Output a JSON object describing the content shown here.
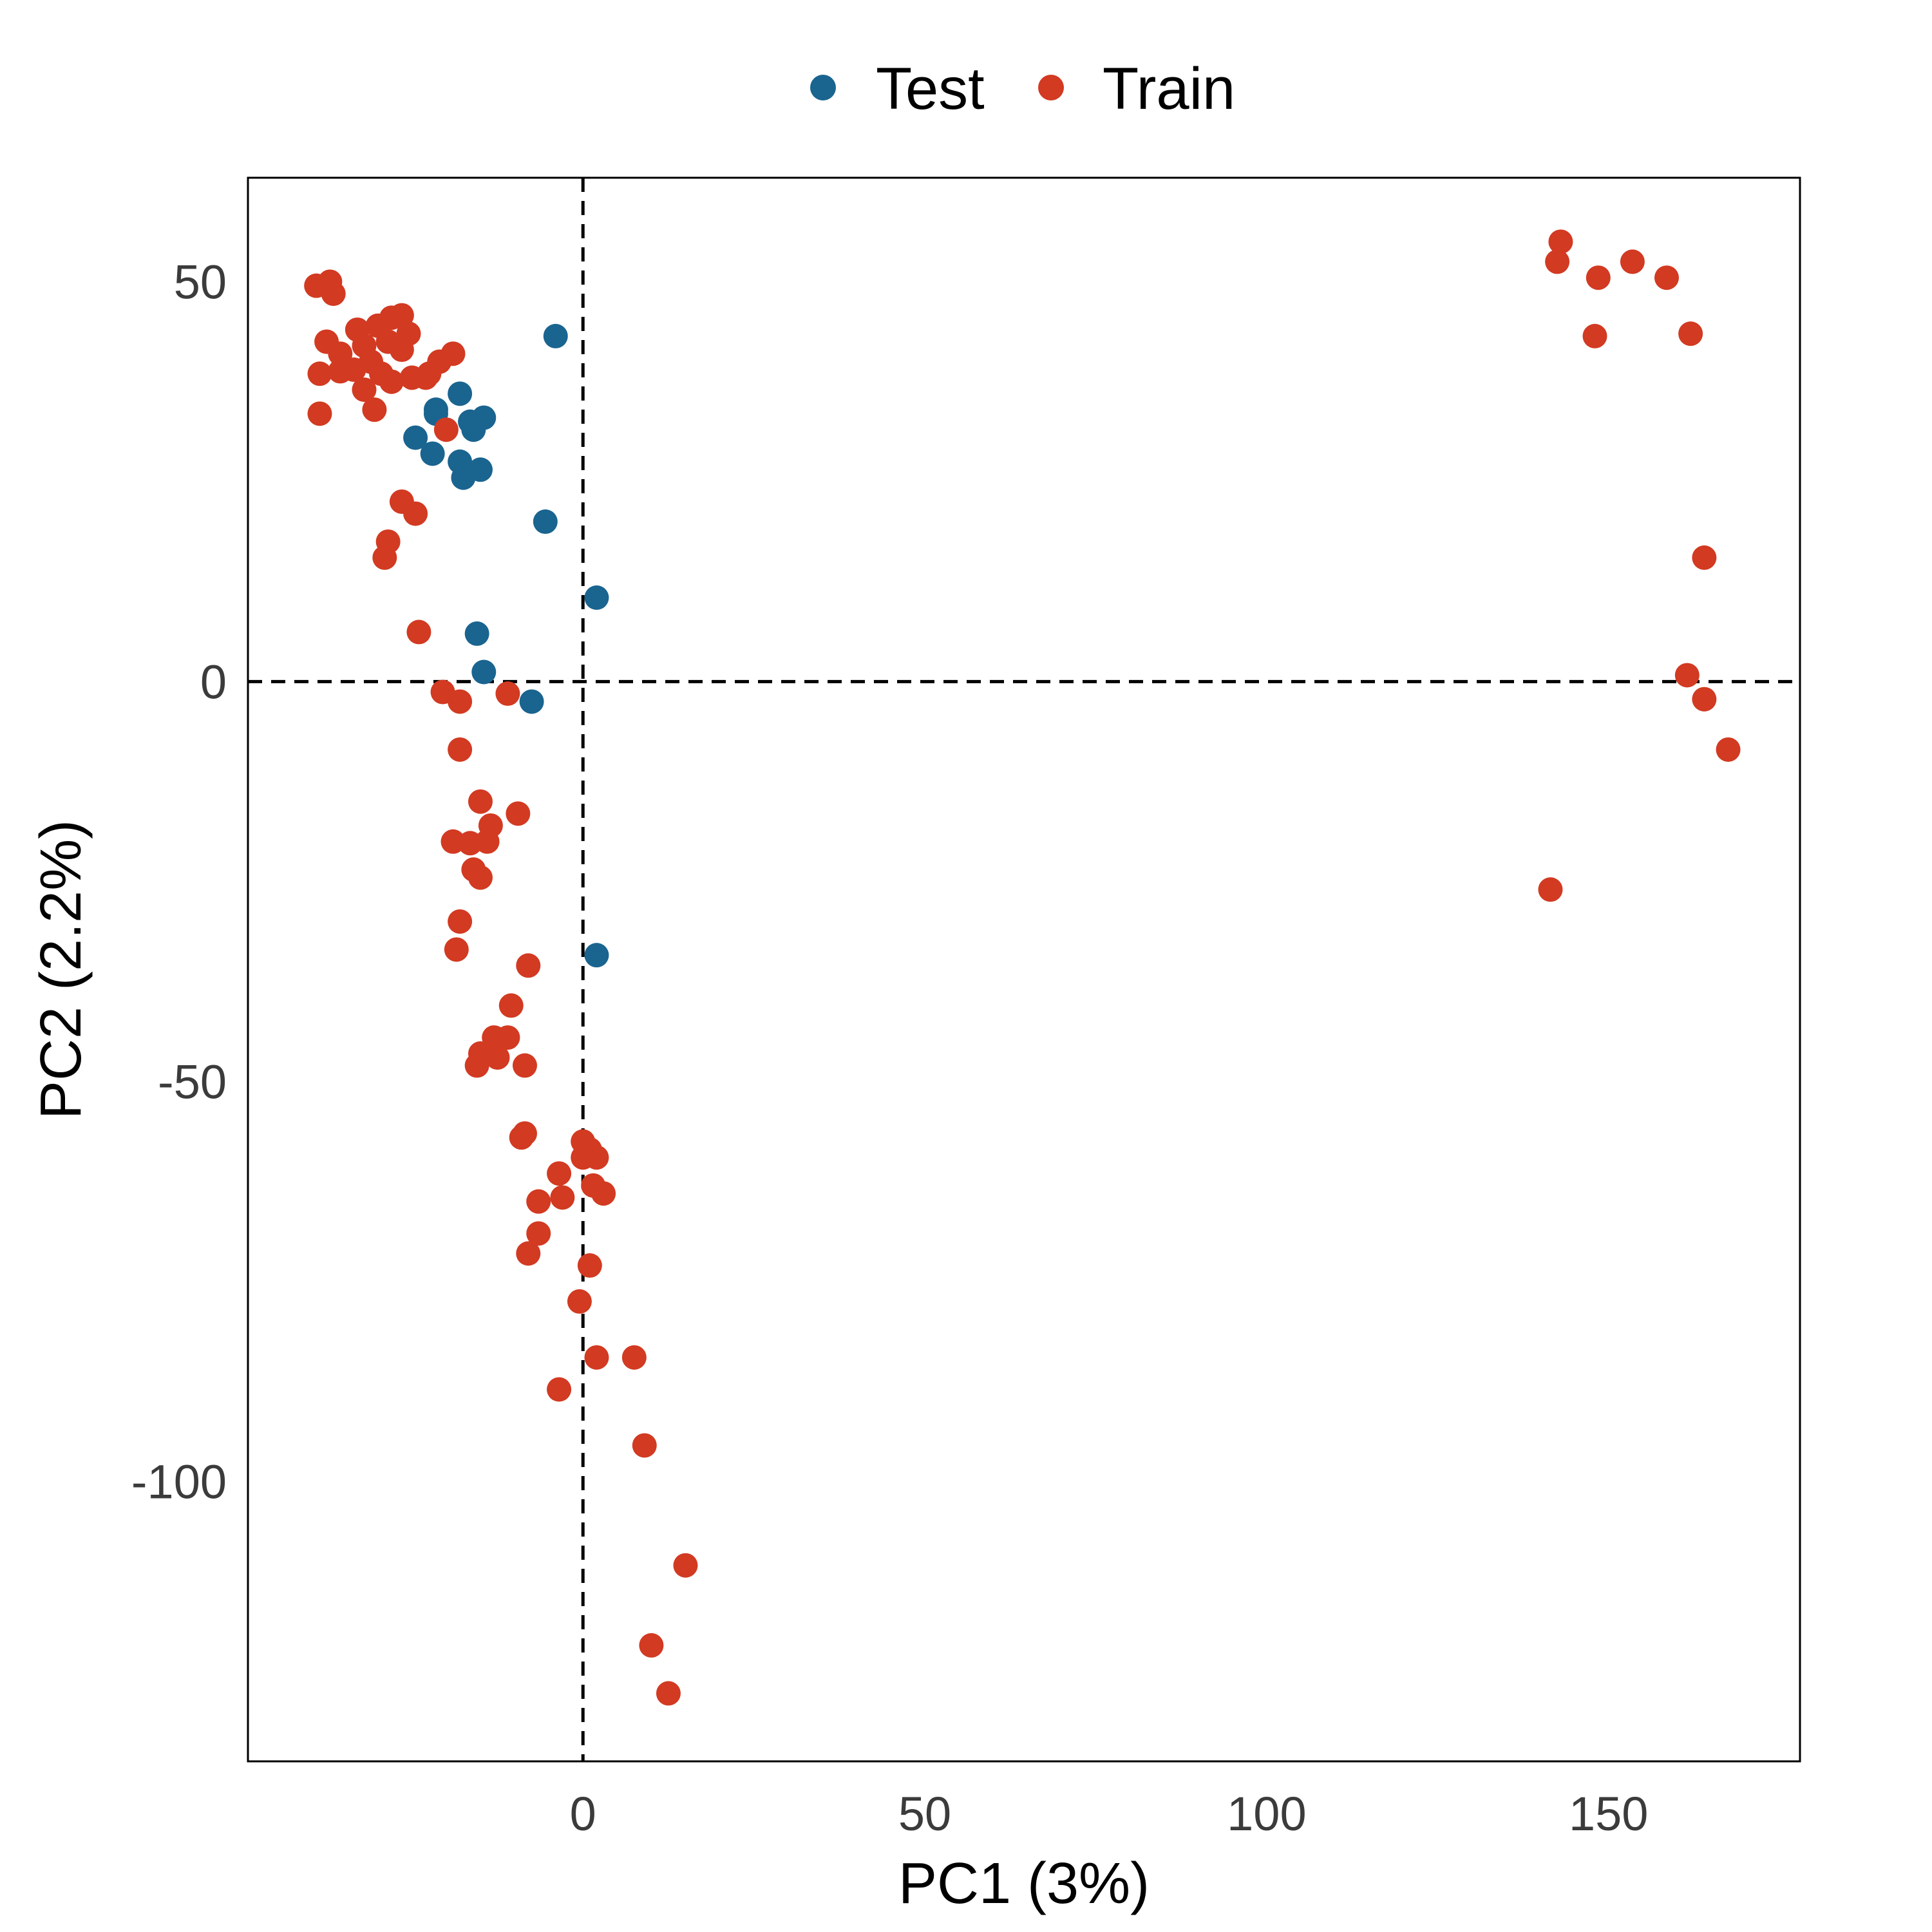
{
  "chart_data": {
    "type": "scatter",
    "xlabel": "PC1 (3%)",
    "ylabel": "PC2 (2.2%)",
    "xlim": [
      -49,
      178
    ],
    "ylim": [
      -135,
      63
    ],
    "x_ticks": [
      0,
      50,
      100,
      150
    ],
    "y_ticks": [
      50,
      0,
      -50,
      -100
    ],
    "x_tick_labels": [
      "0",
      "50",
      "100",
      "150"
    ],
    "y_tick_labels": [
      "50",
      "0",
      "-50",
      "-100"
    ],
    "reference_lines": {
      "x": 0,
      "y": 0,
      "style": "dashed"
    },
    "grid": false,
    "legend": {
      "position": "top",
      "entries": [
        "Test",
        "Train"
      ]
    },
    "series": [
      {
        "name": "Test",
        "color": "#1a6490",
        "points": [
          [
            -4,
            43.2
          ],
          [
            -18,
            36
          ],
          [
            -21.5,
            33.5
          ],
          [
            -21.5,
            34
          ],
          [
            -16.5,
            32.5
          ],
          [
            -16,
            31.5
          ],
          [
            -14.5,
            33
          ],
          [
            -24.5,
            30.5
          ],
          [
            -22,
            28.5
          ],
          [
            -18,
            27.5
          ],
          [
            -15,
            26.5
          ],
          [
            -17.5,
            25.5
          ],
          [
            -5.5,
            20
          ],
          [
            2,
            10.5
          ],
          [
            -15.5,
            6
          ],
          [
            -14.5,
            1.2
          ],
          [
            -7.5,
            -2.5
          ],
          [
            2,
            -34.2
          ]
        ]
      },
      {
        "name": "Train",
        "color": "#d23a22",
        "points": [
          [
            -39,
            49.5
          ],
          [
            -37,
            50
          ],
          [
            -36.5,
            48.5
          ],
          [
            -37.5,
            42.5
          ],
          [
            -33,
            44
          ],
          [
            -35.5,
            41
          ],
          [
            -32,
            42
          ],
          [
            -30,
            44.5
          ],
          [
            -28,
            45.5
          ],
          [
            -26.5,
            45.8
          ],
          [
            -25.5,
            43.5
          ],
          [
            -28.5,
            42.5
          ],
          [
            -31,
            40
          ],
          [
            -33.5,
            39
          ],
          [
            -38.5,
            38.5
          ],
          [
            -35.5,
            38.8
          ],
          [
            -29.5,
            38.5
          ],
          [
            -26.5,
            41.5
          ],
          [
            -25,
            38
          ],
          [
            -23,
            38
          ],
          [
            -21,
            40
          ],
          [
            -19,
            41
          ],
          [
            -22.5,
            38.5
          ],
          [
            -28,
            37.5
          ],
          [
            -32,
            36.5
          ],
          [
            -30.5,
            34
          ],
          [
            -38.5,
            33.5
          ],
          [
            -20,
            31.5
          ],
          [
            -26.5,
            22.5
          ],
          [
            -24.5,
            21
          ],
          [
            -28.5,
            17.5
          ],
          [
            -29,
            15.5
          ],
          [
            -24,
            6.2
          ],
          [
            -20.5,
            -1.3
          ],
          [
            -18,
            -2.5
          ],
          [
            -11,
            -1.5
          ],
          [
            -18,
            -8.5
          ],
          [
            -15,
            -15
          ],
          [
            -13.5,
            -18
          ],
          [
            -9.5,
            -16.5
          ],
          [
            -19,
            -20
          ],
          [
            -16.5,
            -20.2
          ],
          [
            -14,
            -20
          ],
          [
            -16,
            -23.5
          ],
          [
            -15,
            -24.5
          ],
          [
            -18,
            -30
          ],
          [
            -18.5,
            -33.5
          ],
          [
            -8,
            -35.5
          ],
          [
            -10.5,
            -40.5
          ],
          [
            -13,
            -44.5
          ],
          [
            -11,
            -44.5
          ],
          [
            -15,
            -46.5
          ],
          [
            -12.5,
            -47
          ],
          [
            -15.5,
            -48
          ],
          [
            -8.5,
            -48
          ],
          [
            -8.5,
            -56.5
          ],
          [
            -9,
            -57
          ],
          [
            0,
            -57.5
          ],
          [
            1,
            -58.5
          ],
          [
            2,
            -59.5
          ],
          [
            0,
            -59.5
          ],
          [
            -3.5,
            -61.5
          ],
          [
            1.5,
            -63
          ],
          [
            3,
            -64
          ],
          [
            -3,
            -64.5
          ],
          [
            -6.5,
            -65
          ],
          [
            -6.5,
            -69
          ],
          [
            -8,
            -71.5
          ],
          [
            1,
            -73
          ],
          [
            -0.5,
            -77.5
          ],
          [
            2,
            -84.5
          ],
          [
            7.5,
            -84.5
          ],
          [
            -3.5,
            -88.5
          ],
          [
            9,
            -95.5
          ],
          [
            15,
            -110.5
          ],
          [
            10,
            -120.5
          ],
          [
            12.5,
            -126.5
          ],
          [
            141.5,
            -26
          ],
          [
            143,
            55
          ],
          [
            142.5,
            52.5
          ],
          [
            148.5,
            50.5
          ],
          [
            153.5,
            52.5
          ],
          [
            158.5,
            50.5
          ],
          [
            148,
            43.2
          ],
          [
            162,
            43.5
          ],
          [
            164,
            15.5
          ],
          [
            161.5,
            0.8
          ],
          [
            164,
            -2.2
          ],
          [
            167.5,
            -8.5
          ]
        ]
      }
    ]
  }
}
